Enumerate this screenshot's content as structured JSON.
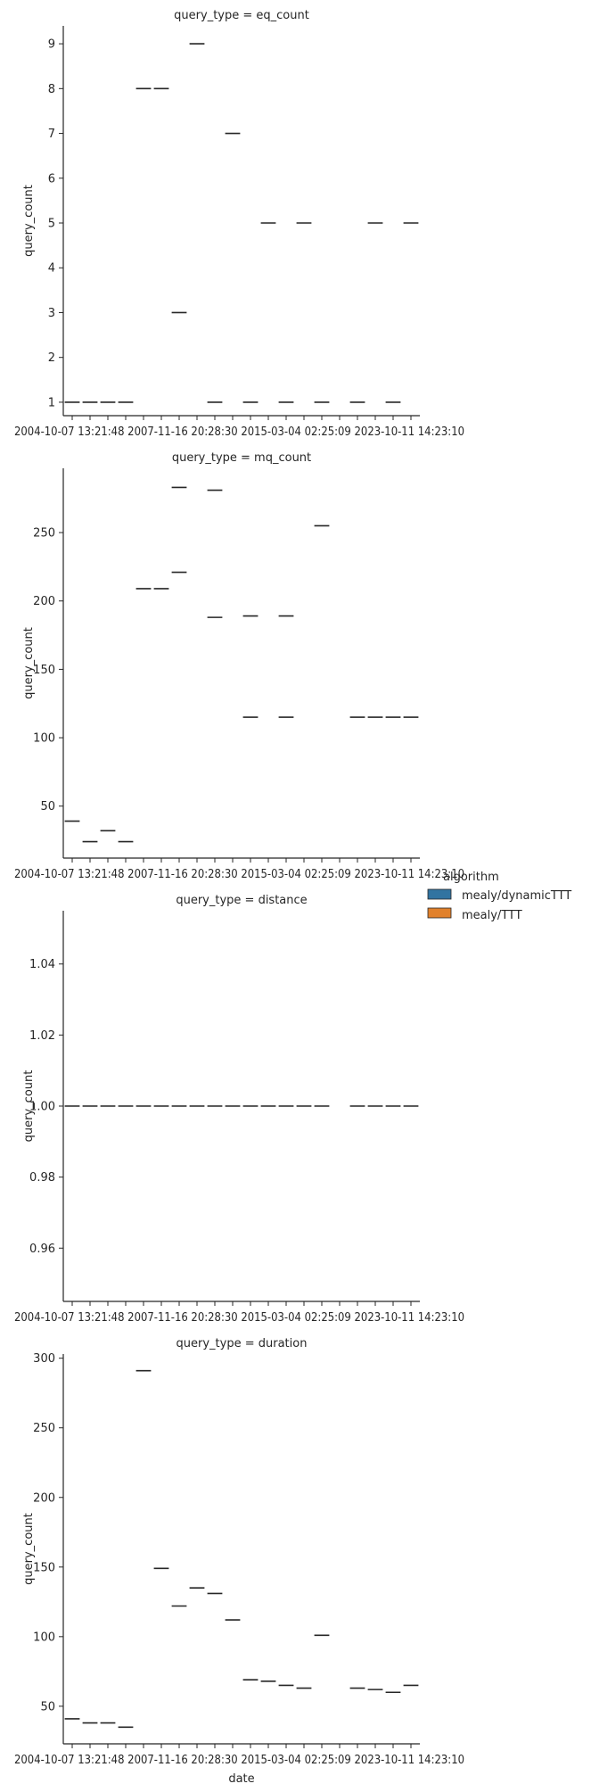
{
  "chart_data": {
    "type": "box",
    "xlabel": "date",
    "ylabel": "query_count",
    "x_tick_label_text": "2004-10-07 13:21:48  2007-11-16 20:28:30  2015-03-04 02:25:09  2023-10-11 14:23:10",
    "n_positions": 20,
    "legend": {
      "title": "algorithm",
      "entries": [
        {
          "label": "mealy/dynamicTTT",
          "color": "#3274a1"
        },
        {
          "label": "mealy/TTT",
          "color": "#e1812c"
        }
      ],
      "placement": "center-right"
    },
    "panels": [
      {
        "title": "query_type = eq_count",
        "ylim": [
          0.7,
          9.4
        ],
        "yticks": [
          1,
          2,
          3,
          4,
          5,
          6,
          7,
          8,
          9
        ],
        "ytick_labels": [
          "1",
          "2",
          "3",
          "4",
          "5",
          "6",
          "7",
          "8",
          "9"
        ],
        "marks": [
          {
            "pos": 1,
            "value": 1
          },
          {
            "pos": 2,
            "value": 1
          },
          {
            "pos": 3,
            "value": 1
          },
          {
            "pos": 4,
            "value": 1
          },
          {
            "pos": 5,
            "value": 8
          },
          {
            "pos": 6,
            "value": 8
          },
          {
            "pos": 7,
            "value": 3
          },
          {
            "pos": 8,
            "value": 9
          },
          {
            "pos": 9,
            "value": 1
          },
          {
            "pos": 10,
            "value": 7
          },
          {
            "pos": 11,
            "value": 1
          },
          {
            "pos": 12,
            "value": 5
          },
          {
            "pos": 13,
            "value": 1
          },
          {
            "pos": 14,
            "value": 5
          },
          {
            "pos": 15,
            "value": 1
          },
          {
            "pos": 17,
            "value": 1
          },
          {
            "pos": 18,
            "value": 5
          },
          {
            "pos": 19,
            "value": 1
          },
          {
            "pos": 20,
            "value": 5
          }
        ]
      },
      {
        "title": "query_type = mq_count",
        "ylim": [
          12,
          297
        ],
        "yticks": [
          50,
          100,
          150,
          200,
          250
        ],
        "ytick_labels": [
          "50",
          "100",
          "150",
          "200",
          "250"
        ],
        "marks": [
          {
            "pos": 1,
            "value": 39
          },
          {
            "pos": 2,
            "value": 24
          },
          {
            "pos": 3,
            "value": 32
          },
          {
            "pos": 4,
            "value": 24
          },
          {
            "pos": 5,
            "value": 209
          },
          {
            "pos": 6,
            "value": 209
          },
          {
            "pos": 7,
            "value": 283
          },
          {
            "pos": 7,
            "value": 221
          },
          {
            "pos": 9,
            "value": 281
          },
          {
            "pos": 9,
            "value": 188
          },
          {
            "pos": 11,
            "value": 189
          },
          {
            "pos": 11,
            "value": 115
          },
          {
            "pos": 13,
            "value": 189
          },
          {
            "pos": 13,
            "value": 115
          },
          {
            "pos": 15,
            "value": 255
          },
          {
            "pos": 17,
            "value": 115
          },
          {
            "pos": 18,
            "value": 115
          },
          {
            "pos": 19,
            "value": 115
          },
          {
            "pos": 20,
            "value": 115
          }
        ]
      },
      {
        "title": "query_type = distance",
        "ylim": [
          0.945,
          1.055
        ],
        "yticks": [
          0.96,
          0.98,
          1.0,
          1.02,
          1.04
        ],
        "ytick_labels": [
          "0.96",
          "0.98",
          "1.00",
          "1.02",
          "1.04"
        ],
        "marks": [
          {
            "pos": 1,
            "value": 1.0
          },
          {
            "pos": 2,
            "value": 1.0
          },
          {
            "pos": 3,
            "value": 1.0
          },
          {
            "pos": 4,
            "value": 1.0
          },
          {
            "pos": 5,
            "value": 1.0
          },
          {
            "pos": 6,
            "value": 1.0
          },
          {
            "pos": 7,
            "value": 1.0
          },
          {
            "pos": 8,
            "value": 1.0
          },
          {
            "pos": 9,
            "value": 1.0
          },
          {
            "pos": 10,
            "value": 1.0
          },
          {
            "pos": 11,
            "value": 1.0
          },
          {
            "pos": 12,
            "value": 1.0
          },
          {
            "pos": 13,
            "value": 1.0
          },
          {
            "pos": 14,
            "value": 1.0
          },
          {
            "pos": 15,
            "value": 1.0
          },
          {
            "pos": 17,
            "value": 1.0
          },
          {
            "pos": 18,
            "value": 1.0
          },
          {
            "pos": 19,
            "value": 1.0
          },
          {
            "pos": 20,
            "value": 1.0
          }
        ]
      },
      {
        "title": "query_type = duration",
        "ylim": [
          23,
          303
        ],
        "yticks": [
          50,
          100,
          150,
          200,
          250,
          300
        ],
        "ytick_labels": [
          "50",
          "100",
          "150",
          "200",
          "250",
          "300"
        ],
        "marks": [
          {
            "pos": 1,
            "value": 41
          },
          {
            "pos": 2,
            "value": 38
          },
          {
            "pos": 3,
            "value": 38
          },
          {
            "pos": 4,
            "value": 35
          },
          {
            "pos": 5,
            "value": 291
          },
          {
            "pos": 6,
            "value": 149
          },
          {
            "pos": 7,
            "value": 122
          },
          {
            "pos": 8,
            "value": 135
          },
          {
            "pos": 9,
            "value": 131
          },
          {
            "pos": 10,
            "value": 112
          },
          {
            "pos": 11,
            "value": 69
          },
          {
            "pos": 12,
            "value": 68
          },
          {
            "pos": 13,
            "value": 65
          },
          {
            "pos": 14,
            "value": 63
          },
          {
            "pos": 15,
            "value": 101
          },
          {
            "pos": 17,
            "value": 63
          },
          {
            "pos": 18,
            "value": 62
          },
          {
            "pos": 19,
            "value": 60
          },
          {
            "pos": 20,
            "value": 65
          }
        ]
      }
    ]
  }
}
